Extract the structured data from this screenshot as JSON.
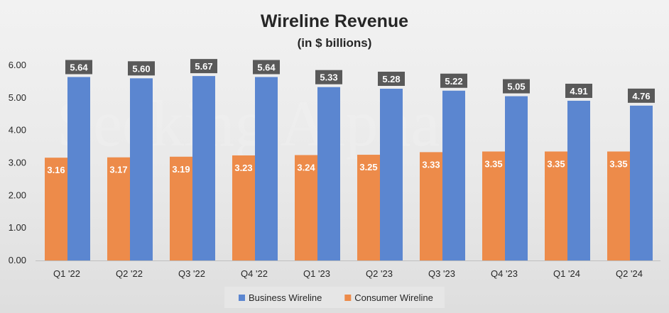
{
  "chart_data": {
    "type": "bar",
    "title": "Wireline Revenue",
    "subtitle": "(in $ billions)",
    "xlabel": "",
    "ylabel": "",
    "ylim": [
      0,
      6
    ],
    "yticks": [
      "0.00",
      "1.00",
      "2.00",
      "3.00",
      "4.00",
      "5.00",
      "6.00"
    ],
    "categories": [
      "Q1 '22",
      "Q2 '22",
      "Q3 '22",
      "Q4 '22",
      "Q1 '23",
      "Q2 '23",
      "Q3 '23",
      "Q4 '23",
      "Q1 '24",
      "Q2 '24"
    ],
    "series": [
      {
        "name": "Consumer Wireline",
        "color": "#ED8B4A",
        "values": [
          3.16,
          3.17,
          3.19,
          3.23,
          3.24,
          3.25,
          3.33,
          3.35,
          3.35,
          3.35
        ],
        "labels": [
          "3.16",
          "3.17",
          "3.19",
          "3.23",
          "3.24",
          "3.25",
          "3.33",
          "3.35",
          "3.35",
          "3.35"
        ]
      },
      {
        "name": "Business Wireline",
        "color": "#5B86D0",
        "values": [
          5.64,
          5.6,
          5.67,
          5.64,
          5.33,
          5.28,
          5.22,
          5.05,
          4.91,
          4.76
        ],
        "labels": [
          "5.64",
          "5.60",
          "5.67",
          "5.64",
          "5.33",
          "5.28",
          "5.22",
          "5.05",
          "4.91",
          "4.76"
        ]
      }
    ],
    "legend": {
      "position": "bottom",
      "order": [
        "Business Wireline",
        "Consumer Wireline"
      ]
    },
    "grid": false,
    "watermark": "Seeking Alpha",
    "label_box_color": "#595959"
  }
}
